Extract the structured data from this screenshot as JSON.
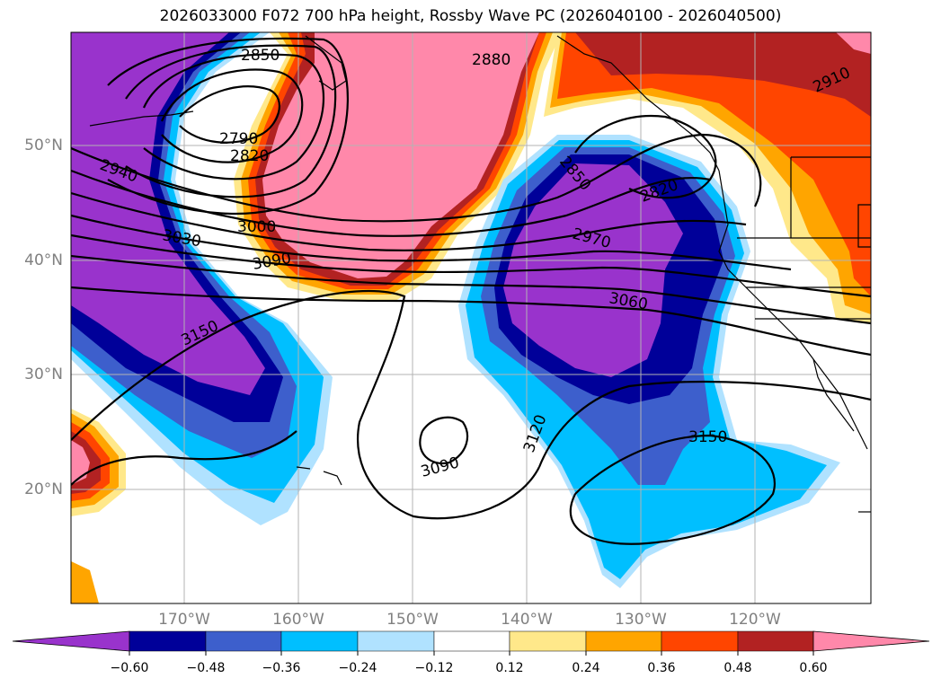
{
  "title": "2026033000 F072 700 hPa height, Rossby Wave PC (2026040100 - 2026040500)",
  "lat_labels": [
    "50°N",
    "40°N",
    "30°N",
    "20°N"
  ],
  "lon_labels": [
    "170°W",
    "160°W",
    "150°W",
    "140°W",
    "130°W",
    "120°W"
  ],
  "contour_labels": [
    "2850",
    "2880",
    "2910",
    "2790",
    "2820",
    "2940",
    "2850",
    "3000",
    "3030",
    "2820",
    "3090",
    "2970",
    "3060",
    "3150",
    "3120",
    "3150",
    "3090"
  ],
  "colorbar": {
    "ticks": [
      "−0.60",
      "−0.48",
      "−0.36",
      "−0.24",
      "−0.12",
      "0.12",
      "0.24",
      "0.36",
      "0.48",
      "0.60"
    ],
    "colors": [
      "#9933cc",
      "#000099",
      "#3d5fcc",
      "#00bfff",
      "#b0e2ff",
      "#ffffff",
      "#ffe88a",
      "#ffa500",
      "#ff4500",
      "#b22222",
      "#ff88aa"
    ]
  },
  "colors": {
    "strong_negative": "#9933cc",
    "neg_2": "#000099",
    "neg_3": "#3d5fcc",
    "neg_4": "#00bfff",
    "neg_5": "#b0e2ff",
    "pos_1": "#ffe88a",
    "pos_2": "#ffa500",
    "pos_3": "#ff4500",
    "pos_4": "#b22222",
    "strong_positive": "#ff88aa"
  }
}
